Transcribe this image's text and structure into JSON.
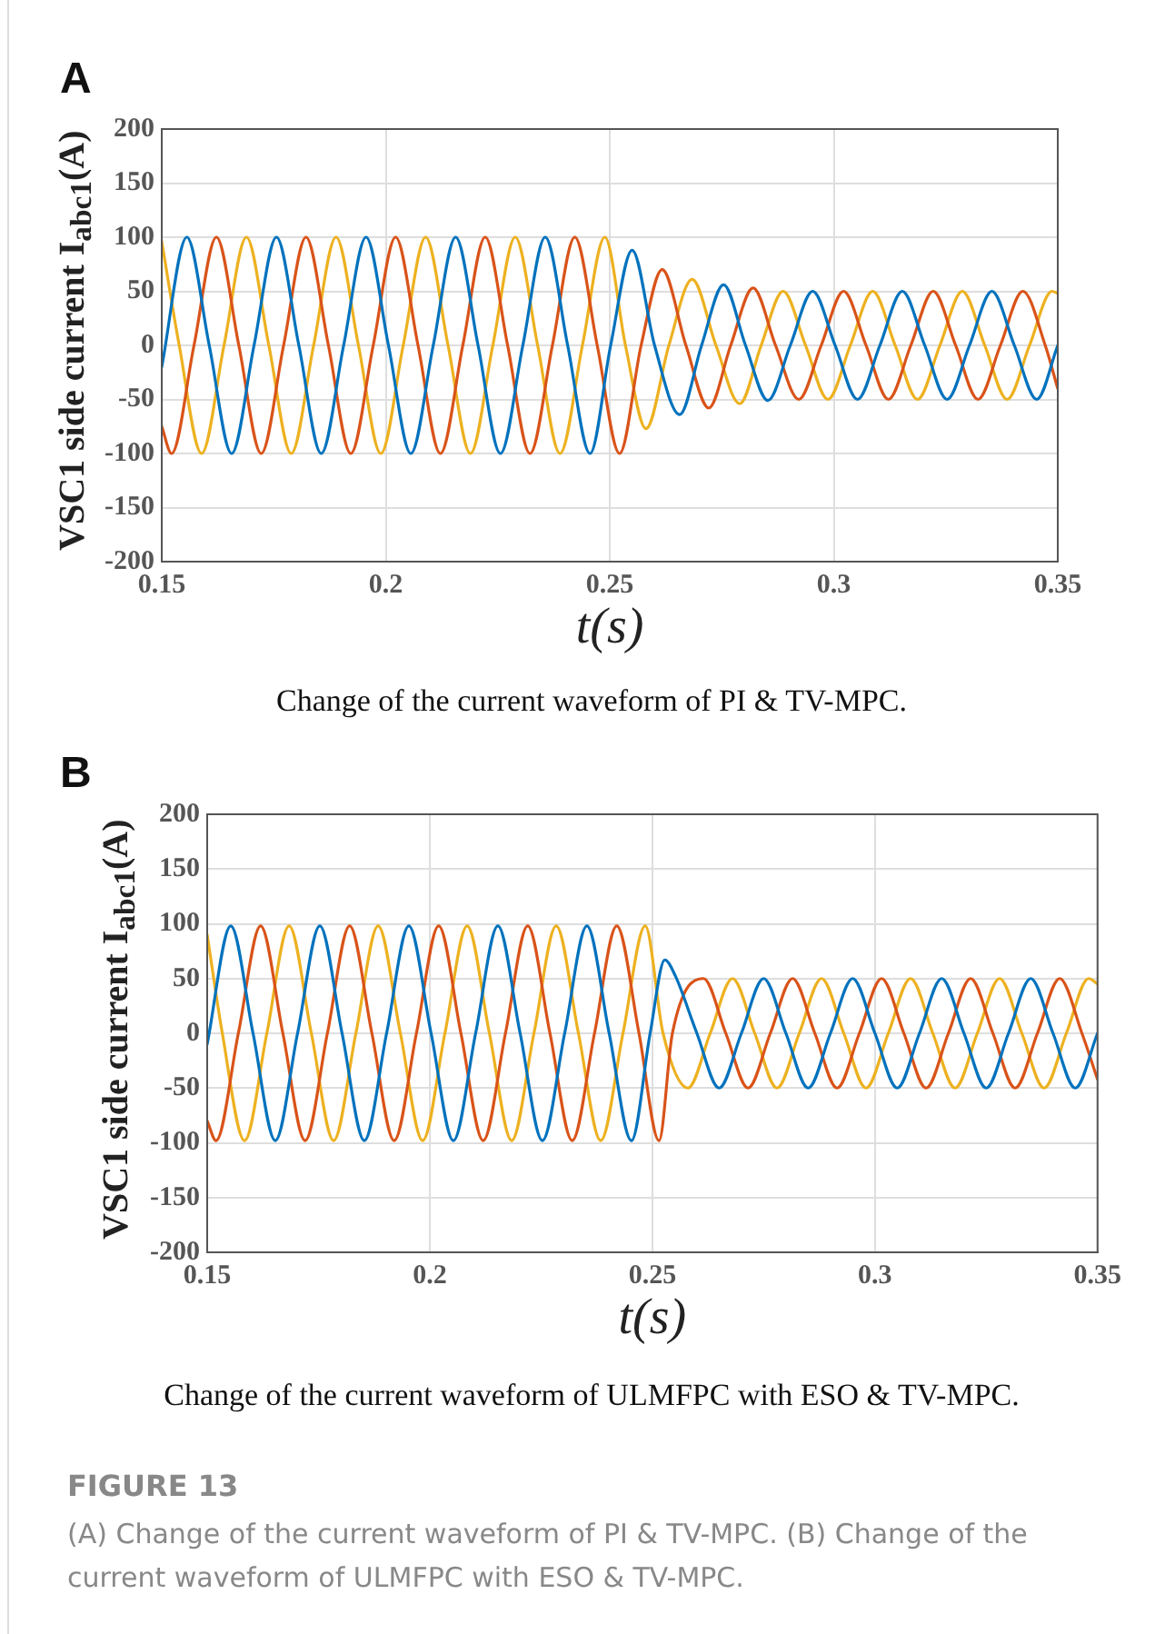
{
  "chart_data": [
    {
      "type": "line",
      "title": "A",
      "xlabel": "t(s)",
      "ylabel": "VSC1 side current I$_{abc1}$(A)",
      "xlim": [
        0.15,
        0.35
      ],
      "xticks": [
        0.15,
        0.2,
        0.25,
        0.3,
        0.35
      ],
      "ylim": [
        -200,
        200
      ],
      "yticks": [
        -200,
        -150,
        -100,
        -50,
        0,
        50,
        100,
        150,
        200
      ],
      "grid": true,
      "legend": false,
      "marker": "none",
      "line_style": "solid",
      "annotations": [
        "Change of the current waveform of PI & TV-MPC."
      ],
      "series": [
        {
          "color": "#0072bd",
          "x": [
            0.15,
            0.1556,
            0.1606,
            0.1656,
            0.1706,
            0.1756,
            0.1806,
            0.1856,
            0.1906,
            0.1956,
            0.2006,
            0.2056,
            0.2106,
            0.2156,
            0.2206,
            0.2256,
            0.2306,
            0.2356,
            0.2406,
            0.2456,
            0.2502,
            0.255,
            0.26,
            0.2656,
            0.2705,
            0.2754,
            0.2803,
            0.2853,
            0.2903,
            0.2953,
            0.3003,
            0.3053,
            0.3103,
            0.3153,
            0.3203,
            0.3253,
            0.3303,
            0.3353,
            0.3403,
            0.3453,
            0.35
          ],
          "values": [
            -20,
            100,
            0,
            -100,
            0,
            100,
            0,
            -100,
            0,
            100,
            0,
            -100,
            0,
            100,
            0,
            -100,
            0,
            100,
            0,
            -100,
            0,
            88,
            0,
            -64,
            0,
            56,
            0,
            -51,
            0,
            50,
            0,
            -50,
            0,
            50,
            0,
            -50,
            0,
            50,
            0,
            -50,
            0
          ]
        },
        {
          "color": "#d95319",
          "x": [
            0.15,
            0.1522,
            0.1572,
            0.1622,
            0.1672,
            0.1722,
            0.1772,
            0.1822,
            0.1872,
            0.1922,
            0.1972,
            0.2022,
            0.2072,
            0.2122,
            0.2172,
            0.2222,
            0.2272,
            0.2322,
            0.2372,
            0.2422,
            0.2472,
            0.2522,
            0.257,
            0.2617,
            0.267,
            0.2721,
            0.277,
            0.282,
            0.287,
            0.2922,
            0.2972,
            0.3022,
            0.3072,
            0.3122,
            0.3172,
            0.3222,
            0.3272,
            0.3322,
            0.3372,
            0.3422,
            0.3472,
            0.35
          ],
          "values": [
            -75,
            -100,
            0,
            100,
            0,
            -100,
            0,
            100,
            0,
            -100,
            0,
            100,
            0,
            -100,
            0,
            100,
            0,
            -100,
            0,
            100,
            0,
            -100,
            0,
            70,
            0,
            -58,
            0,
            53,
            0,
            -50,
            0,
            50,
            0,
            -50,
            0,
            50,
            0,
            -50,
            0,
            50,
            0,
            -40
          ]
        },
        {
          "color": "#edb120",
          "x": [
            0.15,
            0.1539,
            0.1589,
            0.1639,
            0.1689,
            0.1739,
            0.1789,
            0.1839,
            0.1889,
            0.1939,
            0.1989,
            0.2039,
            0.2089,
            0.2139,
            0.2189,
            0.2239,
            0.2289,
            0.2339,
            0.2389,
            0.2439,
            0.2489,
            0.2535,
            0.2581,
            0.2632,
            0.2684,
            0.2737,
            0.279,
            0.2838,
            0.2887,
            0.2937,
            0.2987,
            0.3037,
            0.3087,
            0.3137,
            0.3187,
            0.3237,
            0.3287,
            0.3337,
            0.3387,
            0.3437,
            0.3487,
            0.35
          ],
          "values": [
            96,
            0,
            -100,
            0,
            100,
            0,
            -100,
            0,
            100,
            0,
            -100,
            0,
            100,
            0,
            -100,
            0,
            100,
            0,
            -100,
            0,
            100,
            0,
            -77,
            0,
            61,
            0,
            -54,
            0,
            50,
            0,
            -50,
            0,
            50,
            0,
            -50,
            0,
            50,
            0,
            -50,
            0,
            50,
            48
          ]
        }
      ]
    },
    {
      "type": "line",
      "title": "B",
      "xlabel": "t(s)",
      "ylabel": "VSC1 side current I$_{abc1}$(A)",
      "xlim": [
        0.15,
        0.35
      ],
      "xticks": [
        0.15,
        0.2,
        0.25,
        0.3,
        0.35
      ],
      "ylim": [
        -200,
        200
      ],
      "yticks": [
        -200,
        -150,
        -100,
        -50,
        0,
        50,
        100,
        150,
        200
      ],
      "grid": true,
      "legend": false,
      "marker": "none",
      "line_style": "solid",
      "annotations": [
        "Change of the current waveform of ULMFPC with ESO & TV-MPC.",
        "FIGURE 13",
        "(A) Change of the current waveform of PI & TV-MPC. (B) Change of the current waveform of ULMFPC with ESO & TV-MPC."
      ],
      "series": [
        {
          "color": "#0072bd",
          "x": [
            0.15,
            0.1553,
            0.1603,
            0.1653,
            0.1703,
            0.1753,
            0.1803,
            0.1853,
            0.1903,
            0.1953,
            0.2003,
            0.2053,
            0.2103,
            0.2153,
            0.2203,
            0.2253,
            0.2303,
            0.2353,
            0.2403,
            0.2453,
            0.2495,
            0.2528,
            0.2551,
            0.26,
            0.265,
            0.27,
            0.275,
            0.28,
            0.285,
            0.29,
            0.295,
            0.3,
            0.305,
            0.31,
            0.315,
            0.32,
            0.325,
            0.33,
            0.335,
            0.34,
            0.345,
            0.35
          ],
          "values": [
            -10,
            98,
            0,
            -98,
            0,
            98,
            0,
            -98,
            0,
            98,
            0,
            -98,
            0,
            98,
            0,
            -98,
            0,
            98,
            0,
            -98,
            0,
            67,
            53,
            0,
            -50,
            0,
            50,
            0,
            -50,
            0,
            50,
            0,
            -50,
            0,
            50,
            0,
            -50,
            0,
            50,
            0,
            -50,
            0
          ]
        },
        {
          "color": "#d95319",
          "x": [
            0.15,
            0.152,
            0.157,
            0.162,
            0.167,
            0.172,
            0.177,
            0.182,
            0.187,
            0.192,
            0.197,
            0.202,
            0.207,
            0.212,
            0.217,
            0.222,
            0.227,
            0.232,
            0.237,
            0.242,
            0.247,
            0.2515,
            0.2545,
            0.2615,
            0.2665,
            0.2715,
            0.2765,
            0.2815,
            0.2865,
            0.2915,
            0.2965,
            0.3015,
            0.3065,
            0.3115,
            0.3165,
            0.3215,
            0.3265,
            0.3315,
            0.3365,
            0.3415,
            0.3465,
            0.35
          ],
          "values": [
            -80,
            -98,
            0,
            98,
            0,
            -98,
            0,
            98,
            0,
            -98,
            0,
            98,
            0,
            -98,
            0,
            98,
            0,
            -98,
            0,
            98,
            0,
            -98,
            0,
            50,
            0,
            -50,
            0,
            50,
            0,
            -50,
            0,
            50,
            0,
            -50,
            0,
            50,
            0,
            -50,
            0,
            50,
            0,
            -42
          ]
        },
        {
          "color": "#edb120",
          "x": [
            0.15,
            0.1534,
            0.1584,
            0.1634,
            0.1684,
            0.1734,
            0.1784,
            0.1834,
            0.1884,
            0.1934,
            0.1984,
            0.2034,
            0.2084,
            0.2134,
            0.2184,
            0.2234,
            0.2284,
            0.2334,
            0.2384,
            0.2434,
            0.2484,
            0.2524,
            0.258,
            0.263,
            0.268,
            0.273,
            0.278,
            0.283,
            0.288,
            0.293,
            0.298,
            0.303,
            0.308,
            0.313,
            0.318,
            0.323,
            0.328,
            0.333,
            0.338,
            0.343,
            0.348,
            0.35
          ],
          "values": [
            90,
            0,
            -98,
            0,
            98,
            0,
            -98,
            0,
            98,
            0,
            -98,
            0,
            98,
            0,
            -98,
            0,
            98,
            0,
            -98,
            0,
            98,
            0,
            -50,
            0,
            50,
            0,
            -50,
            0,
            50,
            0,
            -50,
            0,
            50,
            0,
            -50,
            0,
            50,
            0,
            -50,
            0,
            50,
            45
          ]
        }
      ]
    }
  ]
}
